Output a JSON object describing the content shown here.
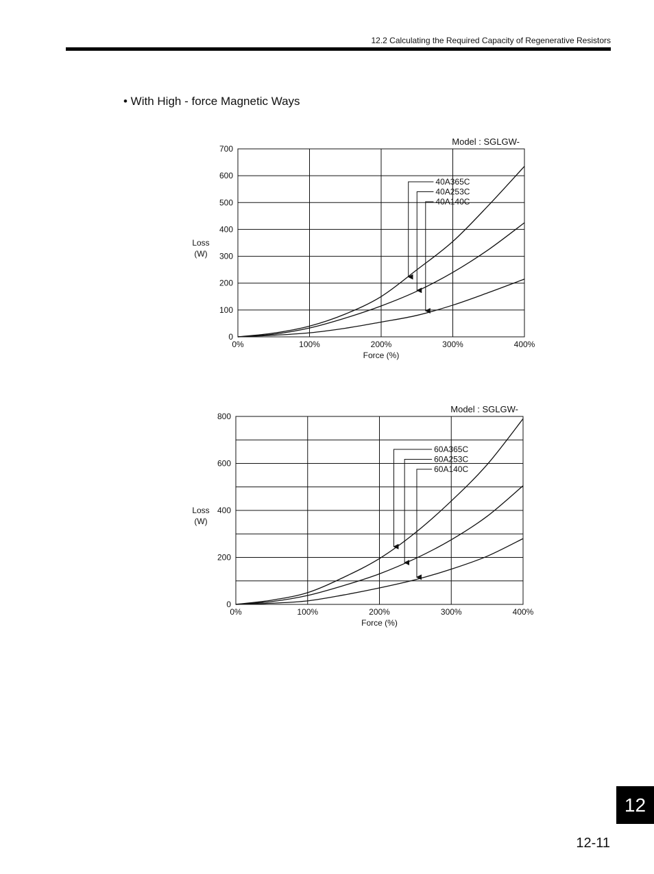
{
  "header": {
    "section": "12.2  Calculating the Required Capacity of Regenerative Resistors"
  },
  "section_title": "•  With High - force Magnetic Ways",
  "chart_data": [
    {
      "type": "line",
      "title": "Model : SGLGW-",
      "xlabel": "Force (%)",
      "ylabel": [
        "Loss",
        "(W)"
      ],
      "xlim": [
        0,
        400
      ],
      "ylim": [
        0,
        700
      ],
      "x_ticks": [
        "0%",
        "100%",
        "200%",
        "300%",
        "400%"
      ],
      "y_ticks": [
        0,
        100,
        200,
        300,
        400,
        500,
        600,
        700
      ],
      "grid": true,
      "series": [
        {
          "name": "40A365C",
          "x": [
            0,
            50,
            100,
            150,
            200,
            250,
            300,
            350,
            400
          ],
          "values": [
            0,
            14,
            40,
            85,
            150,
            250,
            355,
            490,
            635
          ]
        },
        {
          "name": "40A253C",
          "x": [
            0,
            50,
            100,
            150,
            200,
            250,
            300,
            350,
            400
          ],
          "values": [
            0,
            10,
            33,
            70,
            115,
            170,
            240,
            325,
            425
          ]
        },
        {
          "name": "40A140C",
          "x": [
            0,
            50,
            100,
            150,
            200,
            250,
            300,
            350,
            400
          ],
          "values": [
            0,
            6,
            15,
            32,
            55,
            80,
            118,
            165,
            215
          ]
        }
      ],
      "labels": [
        {
          "series": "40A365C",
          "x": 238,
          "y": 218
        },
        {
          "series": "40A253C",
          "x": 250,
          "y": 168
        },
        {
          "series": "40A140C",
          "x": 262,
          "y": 92
        }
      ]
    },
    {
      "type": "line",
      "title": "Model : SGLGW-",
      "xlabel": "Force (%)",
      "ylabel": [
        "Loss",
        "(W)"
      ],
      "xlim": [
        0,
        400
      ],
      "ylim": [
        0,
        800
      ],
      "x_ticks": [
        "0%",
        "100%",
        "200%",
        "300%",
        "400%"
      ],
      "y_ticks": [
        0,
        200,
        400,
        600,
        800
      ],
      "grid_step": 100,
      "grid": true,
      "series": [
        {
          "name": "60A365C",
          "x": [
            0,
            50,
            100,
            150,
            200,
            250,
            300,
            350,
            400
          ],
          "values": [
            0,
            18,
            50,
            115,
            195,
            305,
            440,
            595,
            790
          ]
        },
        {
          "name": "60A253C",
          "x": [
            0,
            50,
            100,
            150,
            200,
            250,
            300,
            350,
            400
          ],
          "values": [
            0,
            12,
            38,
            80,
            130,
            195,
            275,
            375,
            505
          ]
        },
        {
          "name": "60A140C",
          "x": [
            0,
            50,
            100,
            150,
            200,
            250,
            300,
            350,
            400
          ],
          "values": [
            0,
            5,
            15,
            40,
            70,
            105,
            150,
            205,
            280
          ]
        }
      ],
      "labels": [
        {
          "series": "60A365C",
          "x": 220,
          "y": 240
        },
        {
          "series": "60A253C",
          "x": 235,
          "y": 172
        },
        {
          "series": "60A140C",
          "x": 252,
          "y": 110
        }
      ]
    }
  ],
  "chapter_tab": "12",
  "page_number": "12-11"
}
